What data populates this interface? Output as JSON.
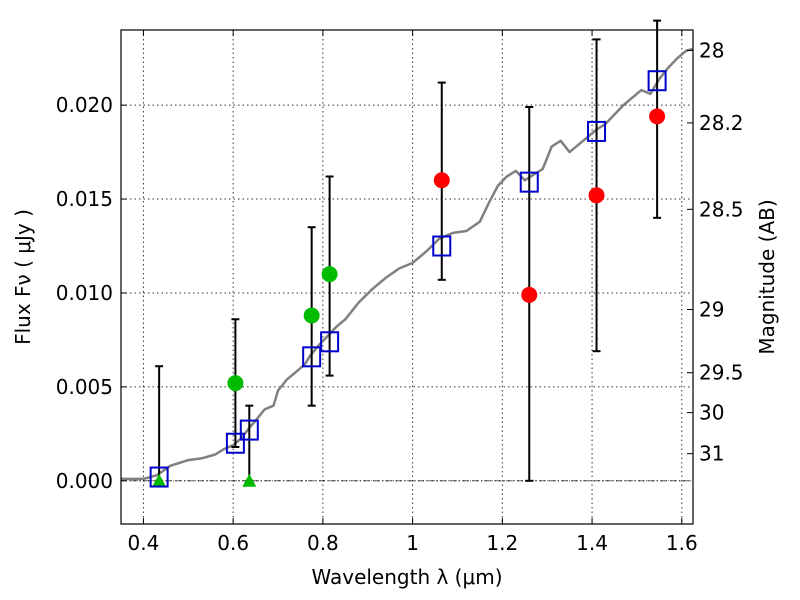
{
  "chart_data": {
    "type": "scatter",
    "xlabel": "Wavelength  λ (μm)",
    "ylabel": "Flux  Fν  ( μJy )",
    "y2label": "Magnitude (AB)",
    "xlim": [
      0.35,
      1.625
    ],
    "ylim": [
      -0.0023,
      0.024
    ],
    "x_ticks": [
      0.4,
      0.6,
      0.8,
      1.0,
      1.2,
      1.4,
      1.6
    ],
    "x_tick_labels": [
      "0.4",
      "0.6",
      "0.8",
      "1",
      "1.2",
      "1.4",
      "1.6"
    ],
    "y_ticks": [
      0.0,
      0.005,
      0.01,
      0.015,
      0.02
    ],
    "y_tick_labels": [
      "0.000",
      "0.005",
      "0.010",
      "0.015",
      "0.020"
    ],
    "mag_ticks": [
      {
        "label": "28",
        "mag": 28.0
      },
      {
        "label": "28.2",
        "mag": 28.2
      },
      {
        "label": "28.5",
        "mag": 28.5
      },
      {
        "label": "29",
        "mag": 29.0
      },
      {
        "label": "29.5",
        "mag": 29.5
      },
      {
        "label": "30",
        "mag": 30.0
      },
      {
        "label": "31",
        "mag": 31.0
      }
    ],
    "grid": true,
    "zero_line": true,
    "colors": {
      "model": "#808080",
      "model_points": "#0000cc",
      "red": "#ff0000",
      "green": "#00bb00",
      "errorbar": "#000000"
    },
    "model_spectrum": {
      "x": [
        0.35,
        0.4,
        0.43,
        0.46,
        0.5,
        0.53,
        0.56,
        0.58,
        0.6,
        0.62,
        0.635,
        0.65,
        0.67,
        0.69,
        0.7,
        0.72,
        0.74,
        0.76,
        0.77,
        0.79,
        0.81,
        0.83,
        0.85,
        0.88,
        0.91,
        0.94,
        0.97,
        1.0,
        1.03,
        1.06,
        1.09,
        1.12,
        1.15,
        1.17,
        1.19,
        1.21,
        1.23,
        1.25,
        1.27,
        1.29,
        1.31,
        1.33,
        1.35,
        1.37,
        1.39,
        1.41,
        1.43,
        1.45,
        1.47,
        1.49,
        1.51,
        1.53,
        1.55,
        1.57,
        1.59,
        1.61,
        1.625
      ],
      "y": [
        0.0001,
        0.0001,
        0.0003,
        0.0008,
        0.0011,
        0.0012,
        0.0014,
        0.0017,
        0.0019,
        0.0023,
        0.0028,
        0.0032,
        0.0038,
        0.004,
        0.0048,
        0.0054,
        0.0058,
        0.0062,
        0.0066,
        0.0072,
        0.0077,
        0.0082,
        0.0086,
        0.0095,
        0.0102,
        0.0108,
        0.0113,
        0.0116,
        0.0122,
        0.0129,
        0.0132,
        0.0133,
        0.0138,
        0.0148,
        0.0157,
        0.0162,
        0.0165,
        0.016,
        0.0163,
        0.0166,
        0.0178,
        0.0181,
        0.0175,
        0.0179,
        0.0183,
        0.0187,
        0.019,
        0.0195,
        0.02,
        0.0204,
        0.0208,
        0.0206,
        0.0214,
        0.022,
        0.0225,
        0.0229,
        0.023
      ]
    },
    "model_points": {
      "x": [
        0.435,
        0.605,
        0.636,
        0.775,
        0.815,
        1.065,
        1.26,
        1.41,
        1.545
      ],
      "y": [
        0.0002,
        0.002,
        0.0027,
        0.0066,
        0.0074,
        0.0125,
        0.0159,
        0.0186,
        0.0213
      ]
    },
    "error_bars": [
      {
        "x": 0.435,
        "low": 0.0,
        "high": 0.0061
      },
      {
        "x": 0.605,
        "low": 0.0018,
        "high": 0.0086
      },
      {
        "x": 0.636,
        "low": 0.0,
        "high": 0.004
      },
      {
        "x": 0.775,
        "low": 0.004,
        "high": 0.0135
      },
      {
        "x": 0.815,
        "low": 0.0056,
        "high": 0.0162
      },
      {
        "x": 1.065,
        "low": 0.0107,
        "high": 0.0212
      },
      {
        "x": 1.26,
        "low": 0.0,
        "high": 0.0199
      },
      {
        "x": 1.41,
        "low": 0.0069,
        "high": 0.0235
      },
      {
        "x": 1.545,
        "low": 0.014,
        "high": 0.0245
      }
    ],
    "observed_red": {
      "x": [
        1.065,
        1.26,
        1.41,
        1.545
      ],
      "y": [
        0.016,
        0.0099,
        0.0152,
        0.0194
      ]
    },
    "observed_green": {
      "x": [
        0.605,
        0.775,
        0.815
      ],
      "y": [
        0.0052,
        0.0088,
        0.011
      ]
    },
    "upper_limits_green": {
      "x": [
        0.435,
        0.636
      ],
      "y": [
        0.0,
        0.0
      ]
    }
  }
}
